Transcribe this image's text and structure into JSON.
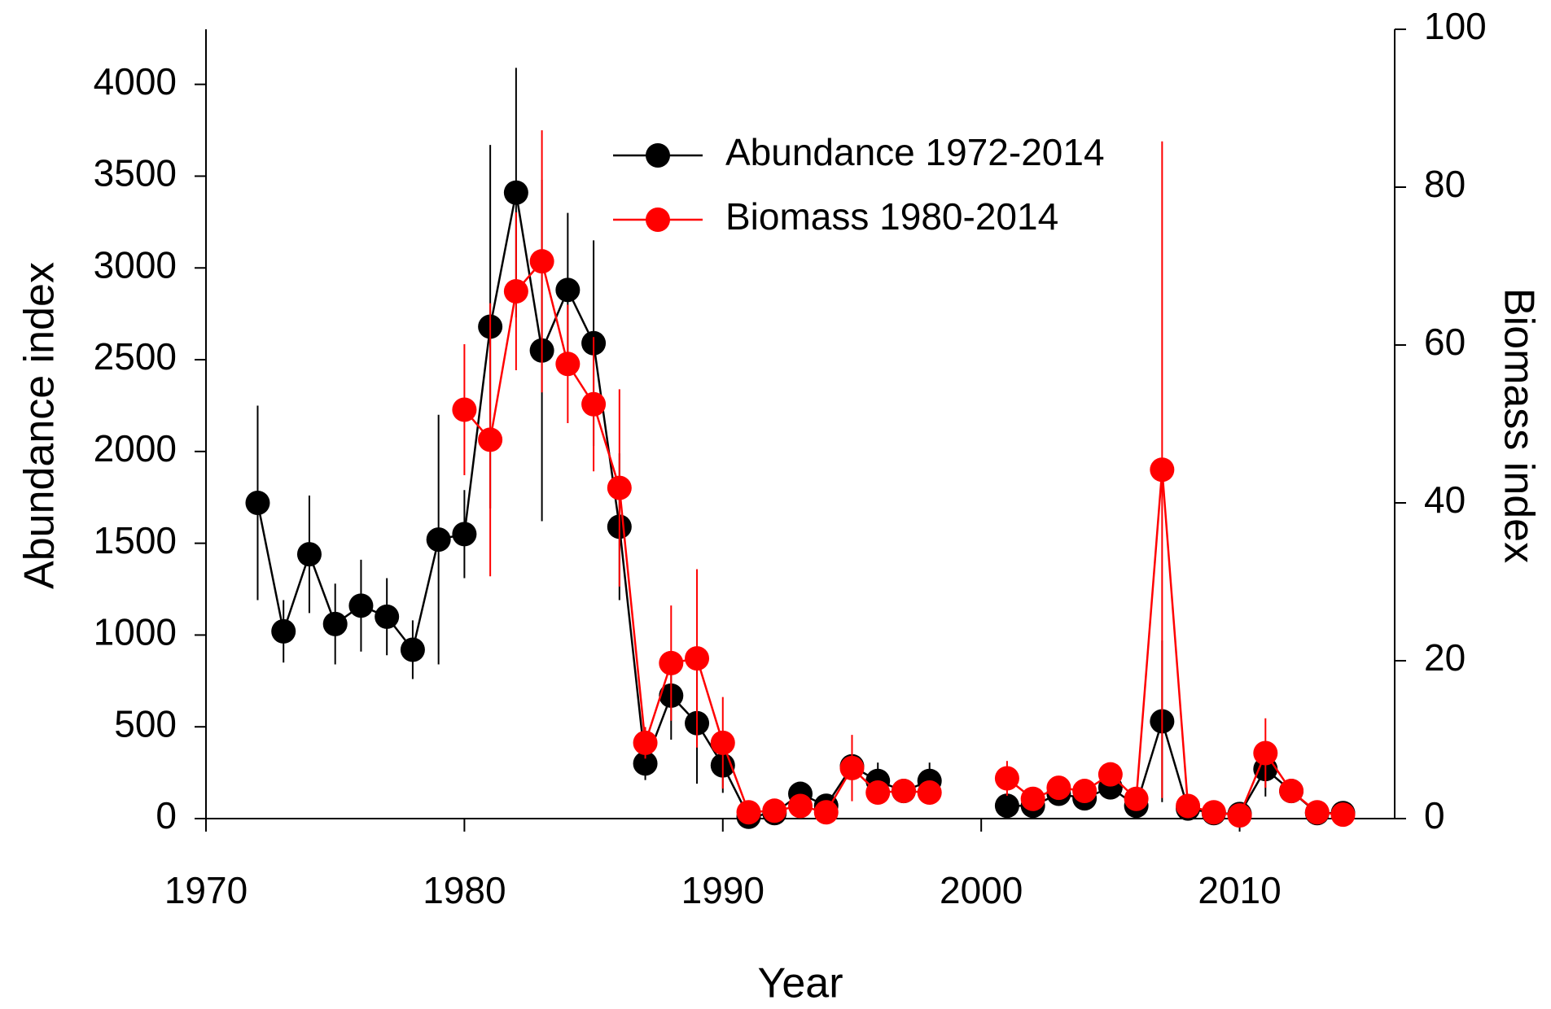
{
  "chart_data": {
    "type": "line",
    "x_label": "Year",
    "y_label": "Abundance index",
    "y2_label": "Biomass index",
    "x": [
      1972,
      1973,
      1974,
      1975,
      1976,
      1977,
      1978,
      1979,
      1980,
      1981,
      1982,
      1983,
      1984,
      1985,
      1986,
      1987,
      1988,
      1989,
      1990,
      1991,
      1992,
      1993,
      1994,
      1995,
      1996,
      1997,
      1998,
      1999,
      2000,
      2001,
      2002,
      2003,
      2004,
      2005,
      2006,
      2007,
      2008,
      2009,
      2010,
      2011,
      2012,
      2013,
      2014
    ],
    "series": [
      {
        "name": "Abundance 1972-2014",
        "color": "#000000",
        "axis": "y",
        "values": [
          1720,
          1020,
          1440,
          1060,
          1160,
          1100,
          920,
          1520,
          1550,
          2680,
          3410,
          2550,
          2880,
          2590,
          1590,
          300,
          670,
          520,
          290,
          10,
          30,
          135,
          70,
          285,
          205,
          150,
          205,
          null,
          null,
          70,
          70,
          135,
          110,
          170,
          70,
          530,
          55,
          30,
          25,
          270,
          150,
          30,
          30
        ],
        "errors": [
          530,
          170,
          320,
          220,
          250,
          210,
          160,
          680,
          240,
          990,
          680,
          930,
          420,
          560,
          400,
          90,
          240,
          330,
          150,
          20,
          30,
          50,
          40,
          60,
          100,
          50,
          100,
          null,
          null,
          40,
          40,
          50,
          40,
          60,
          40,
          440,
          30,
          20,
          20,
          150,
          50,
          20,
          20
        ]
      },
      {
        "name": "Biomass 1980-2014",
        "color": "#ff0000",
        "axis": "y2",
        "values": [
          null,
          null,
          null,
          null,
          null,
          null,
          null,
          null,
          51.8,
          48,
          66.8,
          70.6,
          57.6,
          52.5,
          41.9,
          9.6,
          19.7,
          20.3,
          9.6,
          0.8,
          1,
          1.6,
          0.8,
          6.4,
          3.3,
          3.5,
          3.3,
          null,
          null,
          5.1,
          2.5,
          3.9,
          3.5,
          5.6,
          2.5,
          44.2,
          1.6,
          0.8,
          0.4,
          8.3,
          3.5,
          0.8,
          0.5
        ],
        "errors": [
          null,
          null,
          null,
          null,
          null,
          null,
          null,
          null,
          8.3,
          17.3,
          10,
          16.6,
          7.5,
          8.5,
          12.5,
          2,
          7.3,
          11.3,
          5.8,
          0.8,
          1,
          1.2,
          0.8,
          4.2,
          1.5,
          1.5,
          1.5,
          null,
          null,
          2.2,
          1,
          1.2,
          1.2,
          1.5,
          1,
          41.6,
          1,
          0.6,
          0.4,
          4.4,
          1.2,
          0.6,
          0.4
        ]
      }
    ],
    "xlim": [
      1970,
      2016
    ],
    "xticks": [
      1970,
      1980,
      1990,
      2000,
      2010
    ],
    "ylim": [
      0,
      4300
    ],
    "yticks": [
      0,
      500,
      1000,
      1500,
      2000,
      2500,
      3000,
      3500,
      4000
    ],
    "y2lim": [
      0,
      100
    ],
    "y2ticks": [
      0,
      20,
      40,
      60,
      80,
      100
    ],
    "legend": "top"
  }
}
